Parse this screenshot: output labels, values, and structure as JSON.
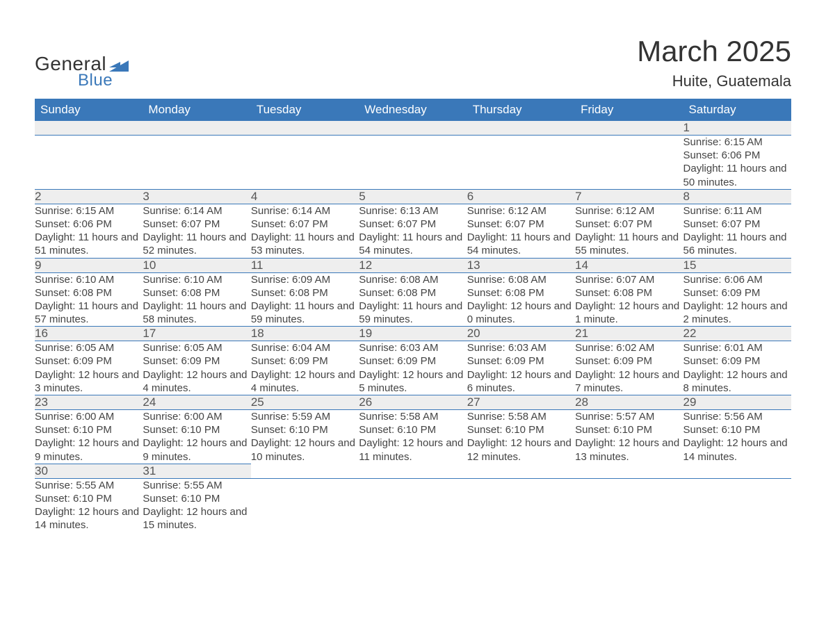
{
  "logo": {
    "general": "General",
    "blue": "Blue",
    "accent_color": "#3a78b9"
  },
  "title": "March 2025",
  "location": "Huite, Guatemala",
  "colors": {
    "header_bg": "#3a78b9",
    "header_text": "#ffffff",
    "daynum_bg": "#eeeeee",
    "row_border": "#3a78b9",
    "body_text": "#444444",
    "page_bg": "#ffffff"
  },
  "weekday_headers": [
    "Sunday",
    "Monday",
    "Tuesday",
    "Wednesday",
    "Thursday",
    "Friday",
    "Saturday"
  ],
  "weeks": [
    [
      null,
      null,
      null,
      null,
      null,
      null,
      {
        "n": "1",
        "sr": "6:15 AM",
        "ss": "6:06 PM",
        "dl": "11 hours and 50 minutes."
      }
    ],
    [
      {
        "n": "2",
        "sr": "6:15 AM",
        "ss": "6:06 PM",
        "dl": "11 hours and 51 minutes."
      },
      {
        "n": "3",
        "sr": "6:14 AM",
        "ss": "6:07 PM",
        "dl": "11 hours and 52 minutes."
      },
      {
        "n": "4",
        "sr": "6:14 AM",
        "ss": "6:07 PM",
        "dl": "11 hours and 53 minutes."
      },
      {
        "n": "5",
        "sr": "6:13 AM",
        "ss": "6:07 PM",
        "dl": "11 hours and 54 minutes."
      },
      {
        "n": "6",
        "sr": "6:12 AM",
        "ss": "6:07 PM",
        "dl": "11 hours and 54 minutes."
      },
      {
        "n": "7",
        "sr": "6:12 AM",
        "ss": "6:07 PM",
        "dl": "11 hours and 55 minutes."
      },
      {
        "n": "8",
        "sr": "6:11 AM",
        "ss": "6:07 PM",
        "dl": "11 hours and 56 minutes."
      }
    ],
    [
      {
        "n": "9",
        "sr": "6:10 AM",
        "ss": "6:08 PM",
        "dl": "11 hours and 57 minutes."
      },
      {
        "n": "10",
        "sr": "6:10 AM",
        "ss": "6:08 PM",
        "dl": "11 hours and 58 minutes."
      },
      {
        "n": "11",
        "sr": "6:09 AM",
        "ss": "6:08 PM",
        "dl": "11 hours and 59 minutes."
      },
      {
        "n": "12",
        "sr": "6:08 AM",
        "ss": "6:08 PM",
        "dl": "11 hours and 59 minutes."
      },
      {
        "n": "13",
        "sr": "6:08 AM",
        "ss": "6:08 PM",
        "dl": "12 hours and 0 minutes."
      },
      {
        "n": "14",
        "sr": "6:07 AM",
        "ss": "6:08 PM",
        "dl": "12 hours and 1 minute."
      },
      {
        "n": "15",
        "sr": "6:06 AM",
        "ss": "6:09 PM",
        "dl": "12 hours and 2 minutes."
      }
    ],
    [
      {
        "n": "16",
        "sr": "6:05 AM",
        "ss": "6:09 PM",
        "dl": "12 hours and 3 minutes."
      },
      {
        "n": "17",
        "sr": "6:05 AM",
        "ss": "6:09 PM",
        "dl": "12 hours and 4 minutes."
      },
      {
        "n": "18",
        "sr": "6:04 AM",
        "ss": "6:09 PM",
        "dl": "12 hours and 4 minutes."
      },
      {
        "n": "19",
        "sr": "6:03 AM",
        "ss": "6:09 PM",
        "dl": "12 hours and 5 minutes."
      },
      {
        "n": "20",
        "sr": "6:03 AM",
        "ss": "6:09 PM",
        "dl": "12 hours and 6 minutes."
      },
      {
        "n": "21",
        "sr": "6:02 AM",
        "ss": "6:09 PM",
        "dl": "12 hours and 7 minutes."
      },
      {
        "n": "22",
        "sr": "6:01 AM",
        "ss": "6:09 PM",
        "dl": "12 hours and 8 minutes."
      }
    ],
    [
      {
        "n": "23",
        "sr": "6:00 AM",
        "ss": "6:10 PM",
        "dl": "12 hours and 9 minutes."
      },
      {
        "n": "24",
        "sr": "6:00 AM",
        "ss": "6:10 PM",
        "dl": "12 hours and 9 minutes."
      },
      {
        "n": "25",
        "sr": "5:59 AM",
        "ss": "6:10 PM",
        "dl": "12 hours and 10 minutes."
      },
      {
        "n": "26",
        "sr": "5:58 AM",
        "ss": "6:10 PM",
        "dl": "12 hours and 11 minutes."
      },
      {
        "n": "27",
        "sr": "5:58 AM",
        "ss": "6:10 PM",
        "dl": "12 hours and 12 minutes."
      },
      {
        "n": "28",
        "sr": "5:57 AM",
        "ss": "6:10 PM",
        "dl": "12 hours and 13 minutes."
      },
      {
        "n": "29",
        "sr": "5:56 AM",
        "ss": "6:10 PM",
        "dl": "12 hours and 14 minutes."
      }
    ],
    [
      {
        "n": "30",
        "sr": "5:55 AM",
        "ss": "6:10 PM",
        "dl": "12 hours and 14 minutes."
      },
      {
        "n": "31",
        "sr": "5:55 AM",
        "ss": "6:10 PM",
        "dl": "12 hours and 15 minutes."
      },
      null,
      null,
      null,
      null,
      null
    ]
  ],
  "labels": {
    "sunrise": "Sunrise:",
    "sunset": "Sunset:",
    "daylight": "Daylight:"
  }
}
